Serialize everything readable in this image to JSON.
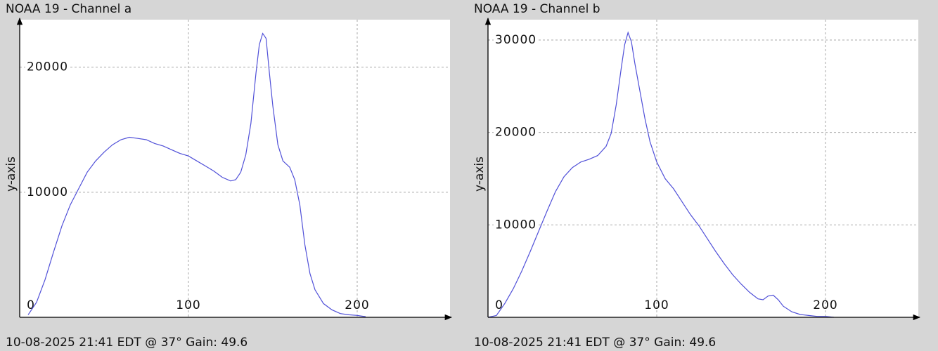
{
  "chart_data": [
    {
      "type": "line",
      "title": "NOAA 19 - Channel a",
      "ylabel": "y-axis",
      "footer": "10-08-2025 21:41 EDT @ 37° Gain: 49.6",
      "color": "#5050d8",
      "grid": true,
      "xlim": [
        0,
        255
      ],
      "ylim": [
        0,
        23800
      ],
      "xticks": [
        0,
        100,
        200
      ],
      "yticks": [
        10000,
        20000
      ],
      "x": [
        5,
        10,
        15,
        20,
        25,
        30,
        35,
        40,
        45,
        50,
        55,
        60,
        65,
        70,
        75,
        80,
        85,
        90,
        95,
        100,
        105,
        110,
        115,
        120,
        125,
        128,
        131,
        134,
        137,
        140,
        142,
        144,
        146,
        148,
        150,
        153,
        156,
        160,
        163,
        166,
        169,
        172,
        175,
        180,
        185,
        190,
        195,
        200,
        205
      ],
      "values": [
        200,
        1200,
        3000,
        5200,
        7300,
        9000,
        10300,
        11600,
        12500,
        13200,
        13800,
        14200,
        14400,
        14300,
        14200,
        13900,
        13700,
        13400,
        13100,
        12900,
        12500,
        12100,
        11700,
        11200,
        10900,
        11000,
        11600,
        13000,
        15500,
        19500,
        21800,
        22700,
        22300,
        19500,
        16900,
        13800,
        12500,
        12000,
        11000,
        9000,
        5800,
        3500,
        2200,
        1100,
        600,
        300,
        200,
        150,
        50
      ]
    },
    {
      "type": "line",
      "title": "NOAA 19 - Channel b",
      "ylabel": "y-axis",
      "footer": "10-08-2025 21:41 EDT @ 37° Gain: 49.6",
      "color": "#5050d8",
      "grid": true,
      "xlim": [
        0,
        255
      ],
      "ylim": [
        0,
        32200
      ],
      "xticks": [
        0,
        100,
        200
      ],
      "yticks": [
        10000,
        20000,
        30000
      ],
      "x": [
        0,
        5,
        10,
        15,
        20,
        25,
        30,
        35,
        40,
        45,
        50,
        55,
        60,
        65,
        70,
        73,
        76,
        79,
        81,
        83,
        85,
        87,
        90,
        93,
        96,
        100,
        105,
        110,
        115,
        120,
        125,
        130,
        135,
        140,
        145,
        150,
        155,
        160,
        163,
        166,
        169,
        172,
        175,
        180,
        185,
        190,
        195,
        200,
        205
      ],
      "values": [
        0,
        200,
        1500,
        3100,
        5000,
        7100,
        9300,
        11500,
        13600,
        15200,
        16200,
        16800,
        17100,
        17500,
        18500,
        19900,
        23000,
        27000,
        29500,
        30800,
        29800,
        27500,
        24500,
        21500,
        19000,
        16800,
        15000,
        13900,
        12500,
        11100,
        9900,
        8500,
        7100,
        5800,
        4600,
        3600,
        2700,
        2000,
        1900,
        2300,
        2400,
        1900,
        1200,
        600,
        300,
        200,
        100,
        100,
        0
      ]
    }
  ]
}
